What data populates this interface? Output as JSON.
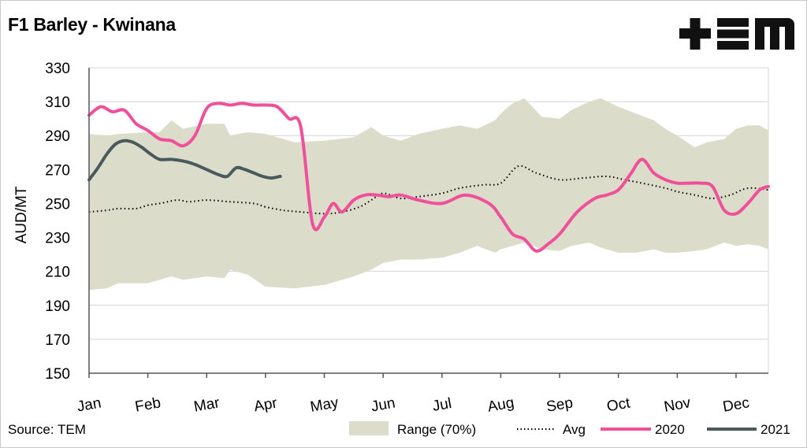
{
  "chart_title": "F1 Barley - Kwinana",
  "logo_text": "+EM",
  "source_text": "Source: TEM",
  "chart_data": {
    "type": "line",
    "title": "F1 Barley - Kwinana",
    "xlabel": "",
    "ylabel": "AUD/MT",
    "ylim": [
      150,
      330
    ],
    "yticks": [
      150,
      170,
      190,
      210,
      230,
      250,
      270,
      290,
      310,
      330
    ],
    "xlim": [
      0,
      11.55
    ],
    "categories": [
      "Jan",
      "Feb",
      "Mar",
      "Apr",
      "May",
      "Jun",
      "Jul",
      "Aug",
      "Sep",
      "Oct",
      "Nov",
      "Dec"
    ],
    "grid": "horizontal",
    "legend_position": "bottom",
    "series": [
      {
        "name": "Range (70%)",
        "kind": "band",
        "color": "#dcdccb",
        "x": [
          0,
          0.3,
          0.5,
          1,
          1.2,
          1.4,
          1.6,
          2,
          2.3,
          2.4,
          2.7,
          3,
          3.5,
          4,
          4.5,
          4.8,
          5,
          5.3,
          5.6,
          6,
          6.3,
          6.6,
          6.9,
          7.0,
          7.2,
          7.4,
          7.7,
          8,
          8.2,
          8.5,
          8.7,
          9,
          9.3,
          9.6,
          9.8,
          10,
          10.3,
          10.5,
          10.8,
          11,
          11.2,
          11.4,
          11.55
        ],
        "upper": [
          291,
          290,
          291,
          292,
          292,
          299,
          294,
          297,
          297,
          290,
          292,
          291,
          286,
          287,
          289,
          295,
          290,
          287,
          291,
          294,
          296,
          294,
          299,
          303,
          309,
          312,
          301,
          300,
          305,
          310,
          312,
          307,
          303,
          299,
          294,
          290,
          283,
          286,
          288,
          294,
          296,
          296,
          293
        ],
        "lower": [
          199,
          200,
          203,
          203,
          205,
          207,
          205,
          207,
          206,
          211,
          208,
          201,
          200,
          202,
          207,
          211,
          215,
          217,
          217,
          218,
          221,
          225,
          221,
          223,
          225,
          227,
          223,
          222,
          225,
          227,
          224,
          221,
          221,
          223,
          221,
          221,
          222,
          223,
          227,
          225,
          226,
          225,
          223
        ]
      },
      {
        "name": "Avg",
        "kind": "dotted",
        "color": "#000000",
        "x": [
          0,
          0.3,
          0.5,
          0.8,
          1,
          1.2,
          1.5,
          1.7,
          2,
          2.4,
          2.8,
          3,
          3.3,
          3.6,
          4,
          4.3,
          4.6,
          4.8,
          5,
          5.3,
          5.6,
          6,
          6.3,
          6.7,
          7,
          7.3,
          7.6,
          8,
          8.4,
          8.8,
          9.1,
          9.4,
          9.8,
          10,
          10.3,
          10.6,
          10.9,
          11.2,
          11.55
        ],
        "values": [
          245,
          246,
          247,
          247,
          249,
          250,
          252,
          251,
          252,
          251,
          250,
          248,
          246,
          245,
          244,
          245,
          248,
          252,
          256,
          253,
          254,
          256,
          259,
          261,
          262,
          272,
          268,
          264,
          265,
          266,
          264,
          262,
          259,
          257,
          255,
          253,
          255,
          259,
          258
        ]
      },
      {
        "name": "2020",
        "kind": "line",
        "color": "#f0509a",
        "x": [
          0,
          0.2,
          0.4,
          0.6,
          0.8,
          1,
          1.2,
          1.4,
          1.6,
          1.8,
          2,
          2.2,
          2.4,
          2.6,
          2.8,
          3,
          3.2,
          3.4,
          3.6,
          3.8,
          4,
          4.15,
          4.3,
          4.5,
          4.7,
          4.9,
          5.1,
          5.3,
          5.6,
          6,
          6.4,
          6.8,
          7,
          7.2,
          7.4,
          7.6,
          7.8,
          8,
          8.3,
          8.6,
          8.8,
          9,
          9.2,
          9.4,
          9.6,
          9.8,
          10,
          10.2,
          10.4,
          10.6,
          10.8,
          11,
          11.2,
          11.4,
          11.55
        ],
        "values": [
          302,
          307,
          304,
          305,
          297,
          293,
          288,
          287,
          284,
          290,
          306,
          309,
          308,
          309,
          308,
          308,
          307,
          300,
          295,
          238,
          242,
          250,
          245,
          252,
          255,
          255,
          254,
          255,
          252,
          250,
          255,
          250,
          242,
          232,
          229,
          222,
          226,
          232,
          245,
          253,
          255,
          258,
          267,
          276,
          268,
          264,
          262,
          262,
          262,
          260,
          246,
          244,
          250,
          258,
          260
        ]
      },
      {
        "name": "2021",
        "kind": "line",
        "color": "#4a5a5c",
        "x": [
          0,
          0.15,
          0.3,
          0.45,
          0.6,
          0.75,
          0.9,
          1.05,
          1.2,
          1.4,
          1.6,
          1.8,
          2,
          2.2,
          2.35,
          2.5,
          2.65,
          2.8,
          2.95,
          3.1,
          3.25
        ],
        "values": [
          264,
          271,
          279,
          285,
          287,
          286,
          283,
          279,
          276,
          276,
          275,
          273,
          270,
          267,
          266,
          271,
          270,
          268,
          266,
          265,
          266
        ]
      }
    ]
  },
  "legend": {
    "range_label": "Range (70%)",
    "avg_label": "Avg",
    "y2020_label": "2020",
    "y2021_label": "2021"
  }
}
